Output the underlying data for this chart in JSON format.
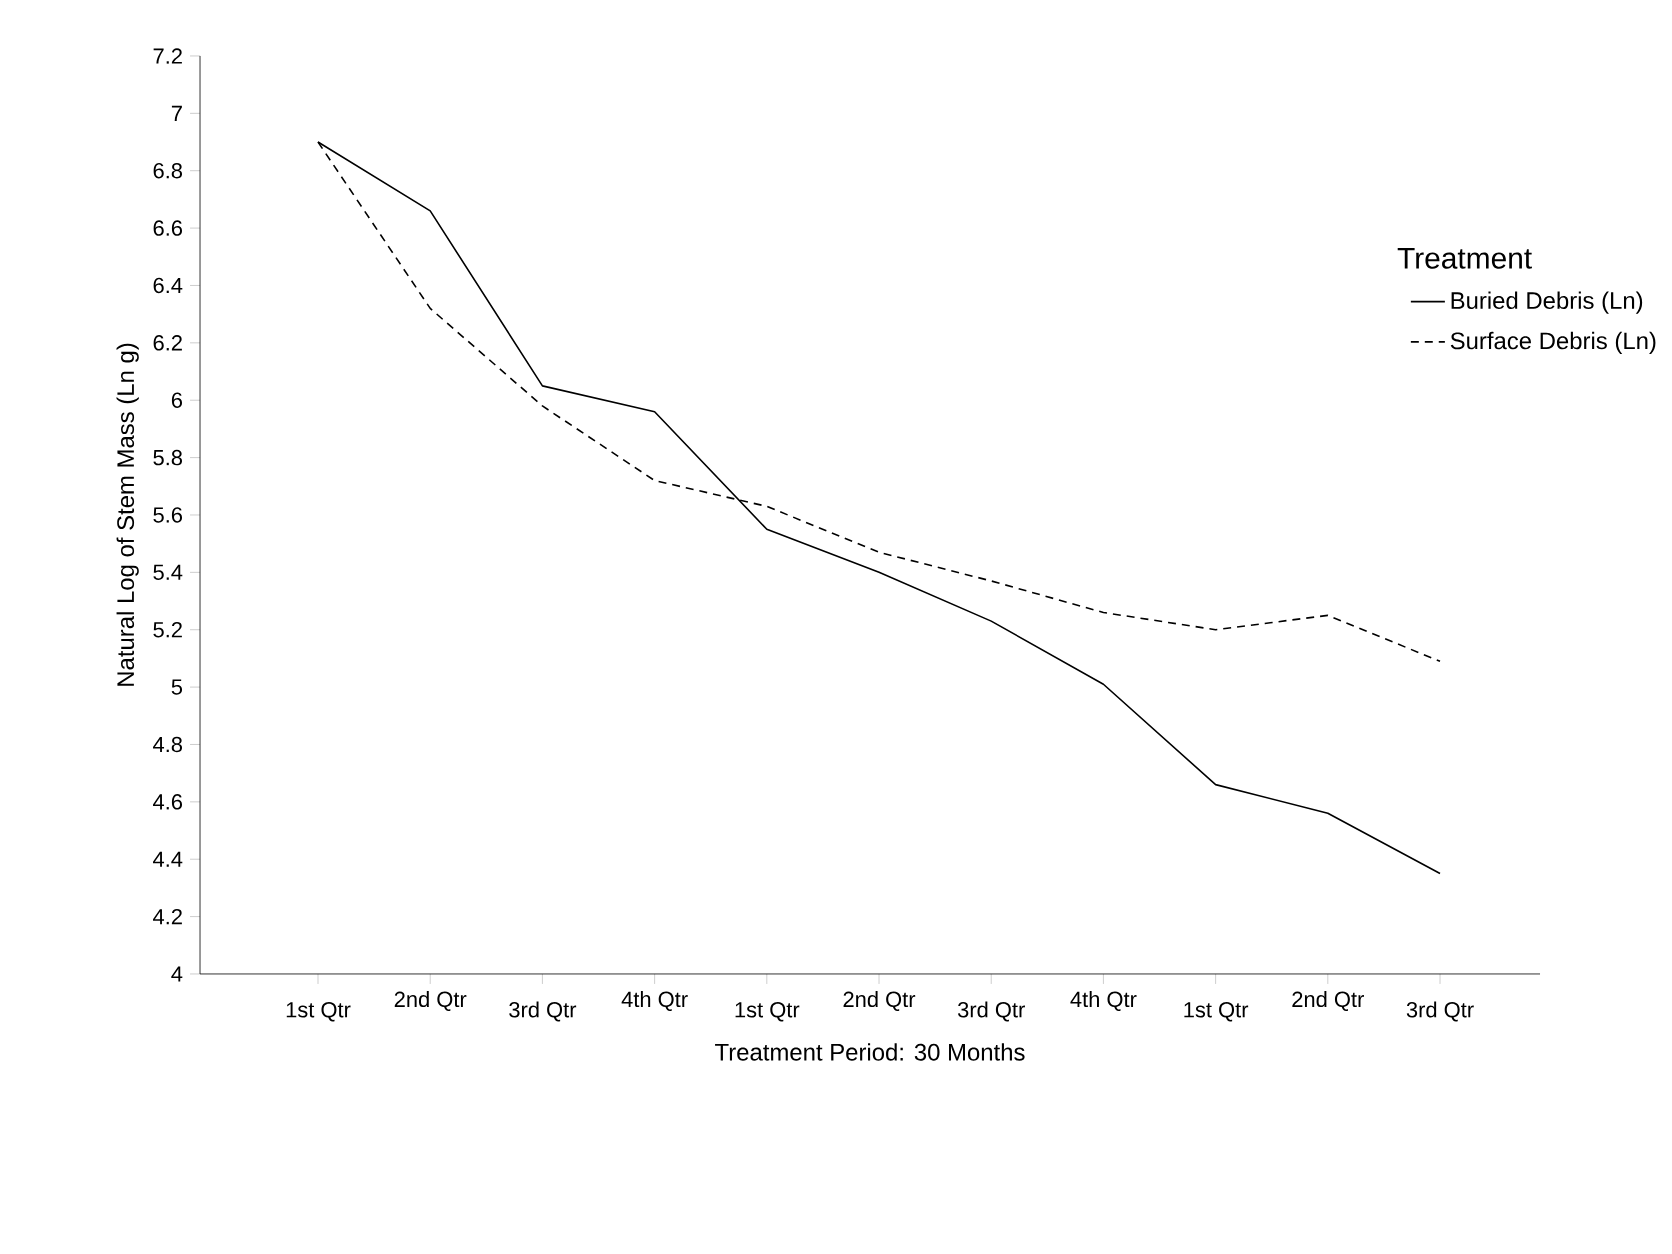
{
  "chart_data": {
    "type": "line",
    "xlabel": "Treatment Period: 30 Months",
    "ylabel": "Natural Log of Stem Mass (Ln g)",
    "legend_title": "Treatment",
    "legend": "right",
    "categories": [
      "1st Qtr",
      "2nd Qtr",
      "3rd Qtr",
      "4th Qtr",
      "1st Qtr",
      "2nd Qtr",
      "3rd Qtr",
      "4th Qtr",
      "1st Qtr",
      "2nd Qtr",
      "3rd Qtr"
    ],
    "series": [
      {
        "name": "Buried Debris (Ln)",
        "color": "#000000",
        "line_style": "solid",
        "values": [
          6.9,
          6.66,
          6.05,
          5.96,
          5.55,
          5.4,
          5.23,
          5.01,
          4.66,
          4.56,
          4.35
        ]
      },
      {
        "name": "Surface Debris (Ln)",
        "color": "#000000",
        "line_style": "dashed",
        "values": [
          6.9,
          6.32,
          5.98,
          5.72,
          5.63,
          5.47,
          5.37,
          5.26,
          5.2,
          5.25,
          5.09
        ]
      }
    ],
    "ylim": [
      4,
      7.2
    ],
    "yticks": [
      4,
      4.2,
      4.4,
      4.6,
      4.8,
      5,
      5.2,
      5.4,
      5.6,
      5.8,
      6,
      6.2,
      6.4,
      6.6,
      6.8,
      7,
      7.2
    ]
  }
}
